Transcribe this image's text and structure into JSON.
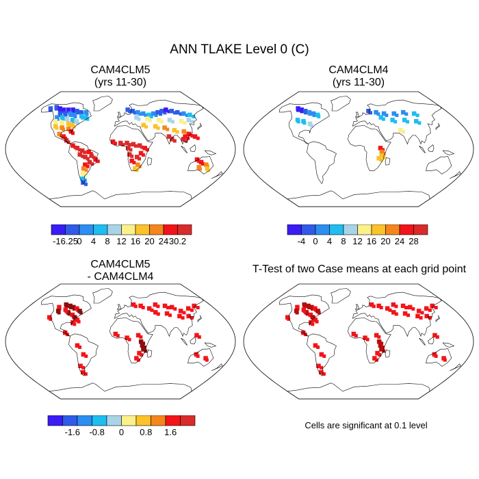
{
  "figure": {
    "title": "ANN TLAKE Level 0 (C)"
  },
  "panels": [
    {
      "id": "top-left",
      "title_line1": "CAM4CLM5",
      "title_line2": "(yrs 11-30)",
      "colorbar": {
        "colors": [
          "#3a1cf5",
          "#2f5be8",
          "#2b8ef0",
          "#1fbdf0",
          "#a9d4e8",
          "#fbf08a",
          "#fbc22a",
          "#f5861c",
          "#f2141a",
          "#d92b2b"
        ],
        "tick_labels": [
          "-16.25",
          "0",
          "4",
          "8",
          "12",
          "16",
          "20",
          "24",
          "30.2"
        ]
      }
    },
    {
      "id": "top-right",
      "title_line1": "CAM4CLM4",
      "title_line2": "(yrs 11-30)",
      "colorbar": {
        "colors": [
          "#3a1cf5",
          "#2f5be8",
          "#2b8ef0",
          "#1fbdf0",
          "#a9d4e8",
          "#fbf08a",
          "#fbc22a",
          "#f5861c",
          "#f2141a",
          "#d92b2b"
        ],
        "tick_labels": [
          "-4",
          "0",
          "4",
          "8",
          "12",
          "16",
          "20",
          "24",
          "28"
        ]
      }
    },
    {
      "id": "bottom-left",
      "title_line1": "CAM4CLM5",
      "title_line2": "- CAM4CLM4",
      "colorbar": {
        "colors": [
          "#3a1cf5",
          "#2f5be8",
          "#2b8ef0",
          "#1fbdf0",
          "#a9d4e8",
          "#fbf08a",
          "#fbc22a",
          "#f5861c",
          "#f2141a",
          "#d92b2b"
        ],
        "tick_labels": [
          "-1.6",
          "-0.8",
          "0",
          "0.8",
          "1.6"
        ]
      }
    },
    {
      "id": "bottom-right",
      "title_line1": "T-Test of two Case means at each grid point",
      "note": "Cells are significant at 0.1 level"
    }
  ]
}
